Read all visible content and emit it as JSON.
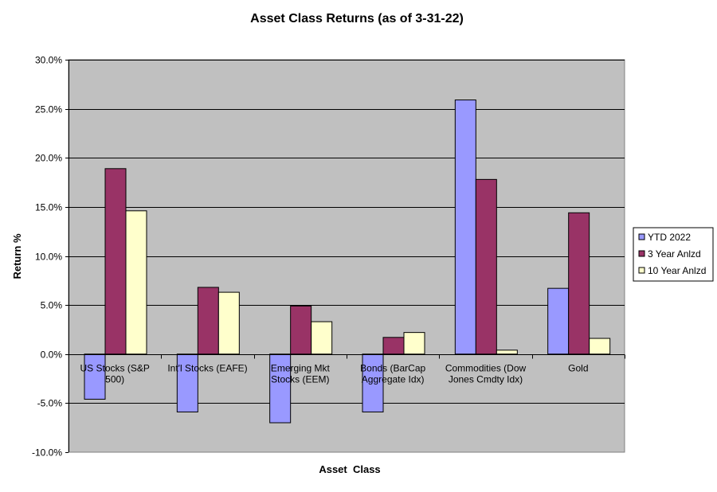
{
  "chart_data": {
    "type": "bar",
    "title": "Asset Class Returns (as of 3-31-22)",
    "xlabel": "Asset  Class",
    "ylabel": "Return %",
    "ylim": [
      -10,
      30
    ],
    "yticks": [
      30,
      25,
      20,
      15,
      10,
      5,
      0,
      -5,
      -10
    ],
    "ytick_labels": [
      "30.0%",
      "25.0%",
      "20.0%",
      "15.0%",
      "10.0%",
      "5.0%",
      "0.0%",
      "-5.0%",
      "-10.0%"
    ],
    "categories": [
      [
        "US Stocks (S&P",
        "500)"
      ],
      [
        "Int'l Stocks (EAFE)"
      ],
      [
        "Emerging Mkt",
        "Stocks (EEM)"
      ],
      [
        "Bonds (BarCap",
        "Aggregate Idx)"
      ],
      [
        "Commodities (Dow",
        "Jones Cmdty Idx)"
      ],
      [
        "Gold"
      ]
    ],
    "series": [
      {
        "name": "YTD 2022",
        "color": "#9999ff",
        "values": [
          -4.6,
          -5.9,
          -7.0,
          -5.9,
          25.9,
          6.7
        ]
      },
      {
        "name": "3 Year Anlzd",
        "color": "#993366",
        "values": [
          18.9,
          6.8,
          4.9,
          1.7,
          17.8,
          14.4
        ]
      },
      {
        "name": "10 Year Anlzd",
        "color": "#ffffcc",
        "values": [
          14.6,
          6.3,
          3.3,
          2.2,
          0.4,
          1.6
        ]
      }
    ],
    "grid": true,
    "plot_background": "#c0c0c0",
    "legend_position": "right"
  }
}
